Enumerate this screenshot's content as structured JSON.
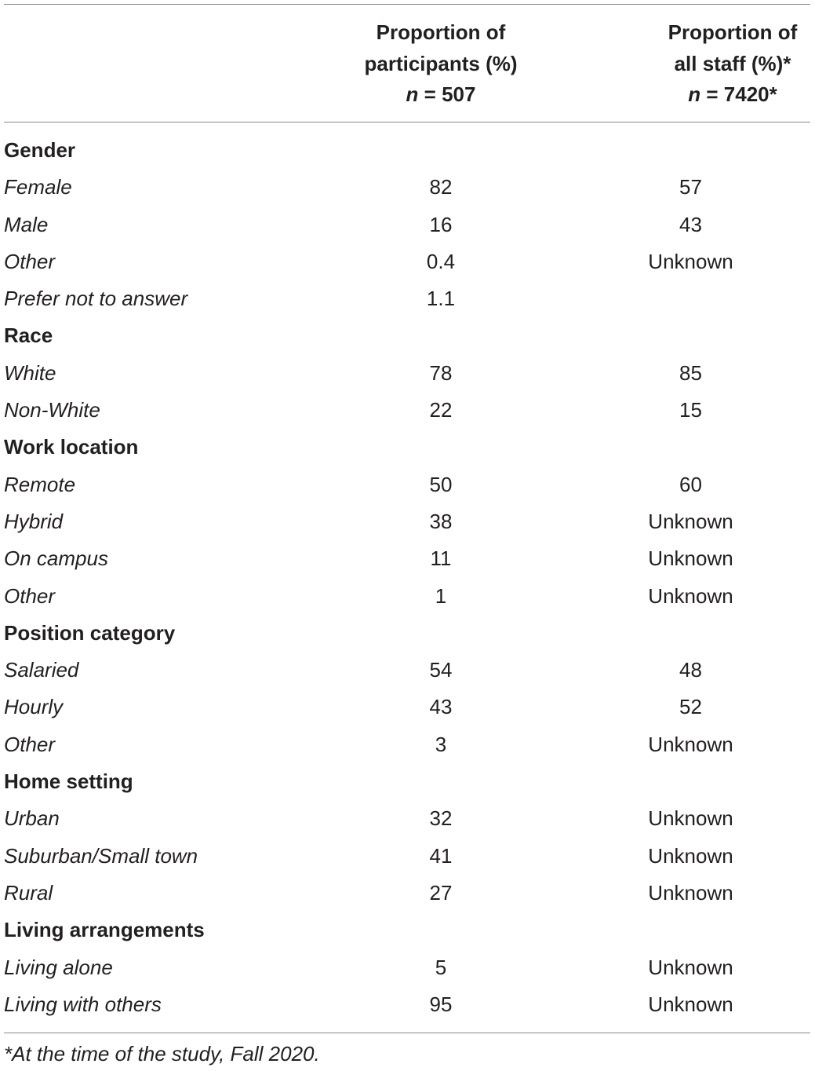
{
  "header": {
    "col1": [
      "Proportion of",
      "participants (%)"
    ],
    "col1_n_var": "n",
    "col1_n_rest": " = 507",
    "col2": [
      "Proportion of",
      "all staff (%)*"
    ],
    "col2_n_var": "n",
    "col2_n_rest": " = 7420*"
  },
  "rows": [
    {
      "type": "category",
      "label": "Gender",
      "participants": "",
      "staff": ""
    },
    {
      "type": "item",
      "label": "Female",
      "participants": "82",
      "staff": "57"
    },
    {
      "type": "item",
      "label": "Male",
      "participants": "16",
      "staff": "43"
    },
    {
      "type": "item",
      "label": "Other",
      "participants": "0.4",
      "staff": "Unknown"
    },
    {
      "type": "item",
      "label": "Prefer not to answer",
      "participants": "1.1",
      "staff": ""
    },
    {
      "type": "category",
      "label": "Race",
      "participants": "",
      "staff": ""
    },
    {
      "type": "item",
      "label": "White",
      "participants": "78",
      "staff": "85"
    },
    {
      "type": "item",
      "label": "Non-White",
      "participants": "22",
      "staff": "15"
    },
    {
      "type": "category",
      "label": "Work location",
      "participants": "",
      "staff": ""
    },
    {
      "type": "item",
      "label": "Remote",
      "participants": "50",
      "staff": "60"
    },
    {
      "type": "item",
      "label": "Hybrid",
      "participants": "38",
      "staff": "Unknown"
    },
    {
      "type": "item",
      "label": "On campus",
      "participants": "11",
      "staff": "Unknown"
    },
    {
      "type": "item",
      "label": "Other",
      "participants": "1",
      "staff": "Unknown"
    },
    {
      "type": "category",
      "label": "Position category",
      "participants": "",
      "staff": ""
    },
    {
      "type": "item",
      "label": "Salaried",
      "participants": "54",
      "staff": "48"
    },
    {
      "type": "item",
      "label": "Hourly",
      "participants": "43",
      "staff": "52"
    },
    {
      "type": "item",
      "label": "Other",
      "participants": "3",
      "staff": "Unknown"
    },
    {
      "type": "category",
      "label": "Home setting",
      "participants": "",
      "staff": ""
    },
    {
      "type": "item",
      "label": "Urban",
      "participants": "32",
      "staff": "Unknown"
    },
    {
      "type": "item",
      "label": "Suburban/Small town",
      "participants": "41",
      "staff": "Unknown"
    },
    {
      "type": "item",
      "label": "Rural",
      "participants": "27",
      "staff": "Unknown"
    },
    {
      "type": "category",
      "label": "Living arrangements",
      "participants": "",
      "staff": ""
    },
    {
      "type": "item",
      "label": "Living alone",
      "participants": "5",
      "staff": "Unknown"
    },
    {
      "type": "item",
      "label": "Living with others",
      "participants": "95",
      "staff": "Unknown"
    }
  ],
  "footnote": "*At the time of the study, Fall 2020."
}
